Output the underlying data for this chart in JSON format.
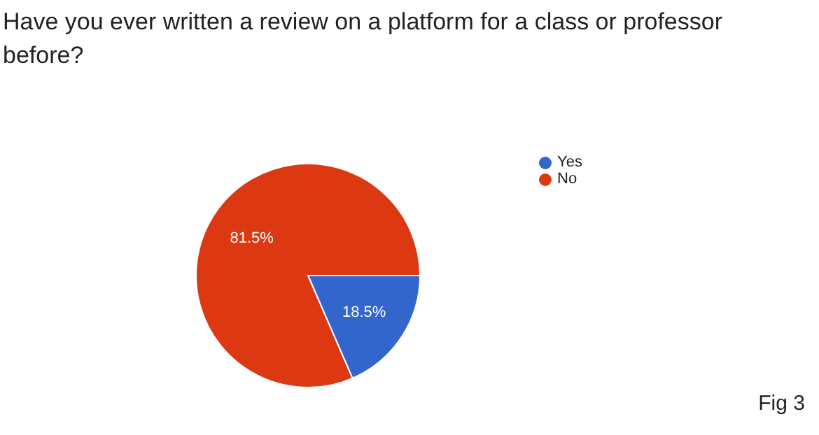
{
  "chart_data": {
    "type": "pie",
    "title": "Have you ever written a review on a platform for a class or professor before?",
    "categories": [
      "Yes",
      "No"
    ],
    "values": [
      18.5,
      81.5
    ],
    "colors": [
      "#3366cc",
      "#dc3912"
    ],
    "value_labels": [
      "18.5%",
      "81.5%"
    ],
    "legend": "right",
    "annotations": [
      "Fig 3"
    ]
  }
}
